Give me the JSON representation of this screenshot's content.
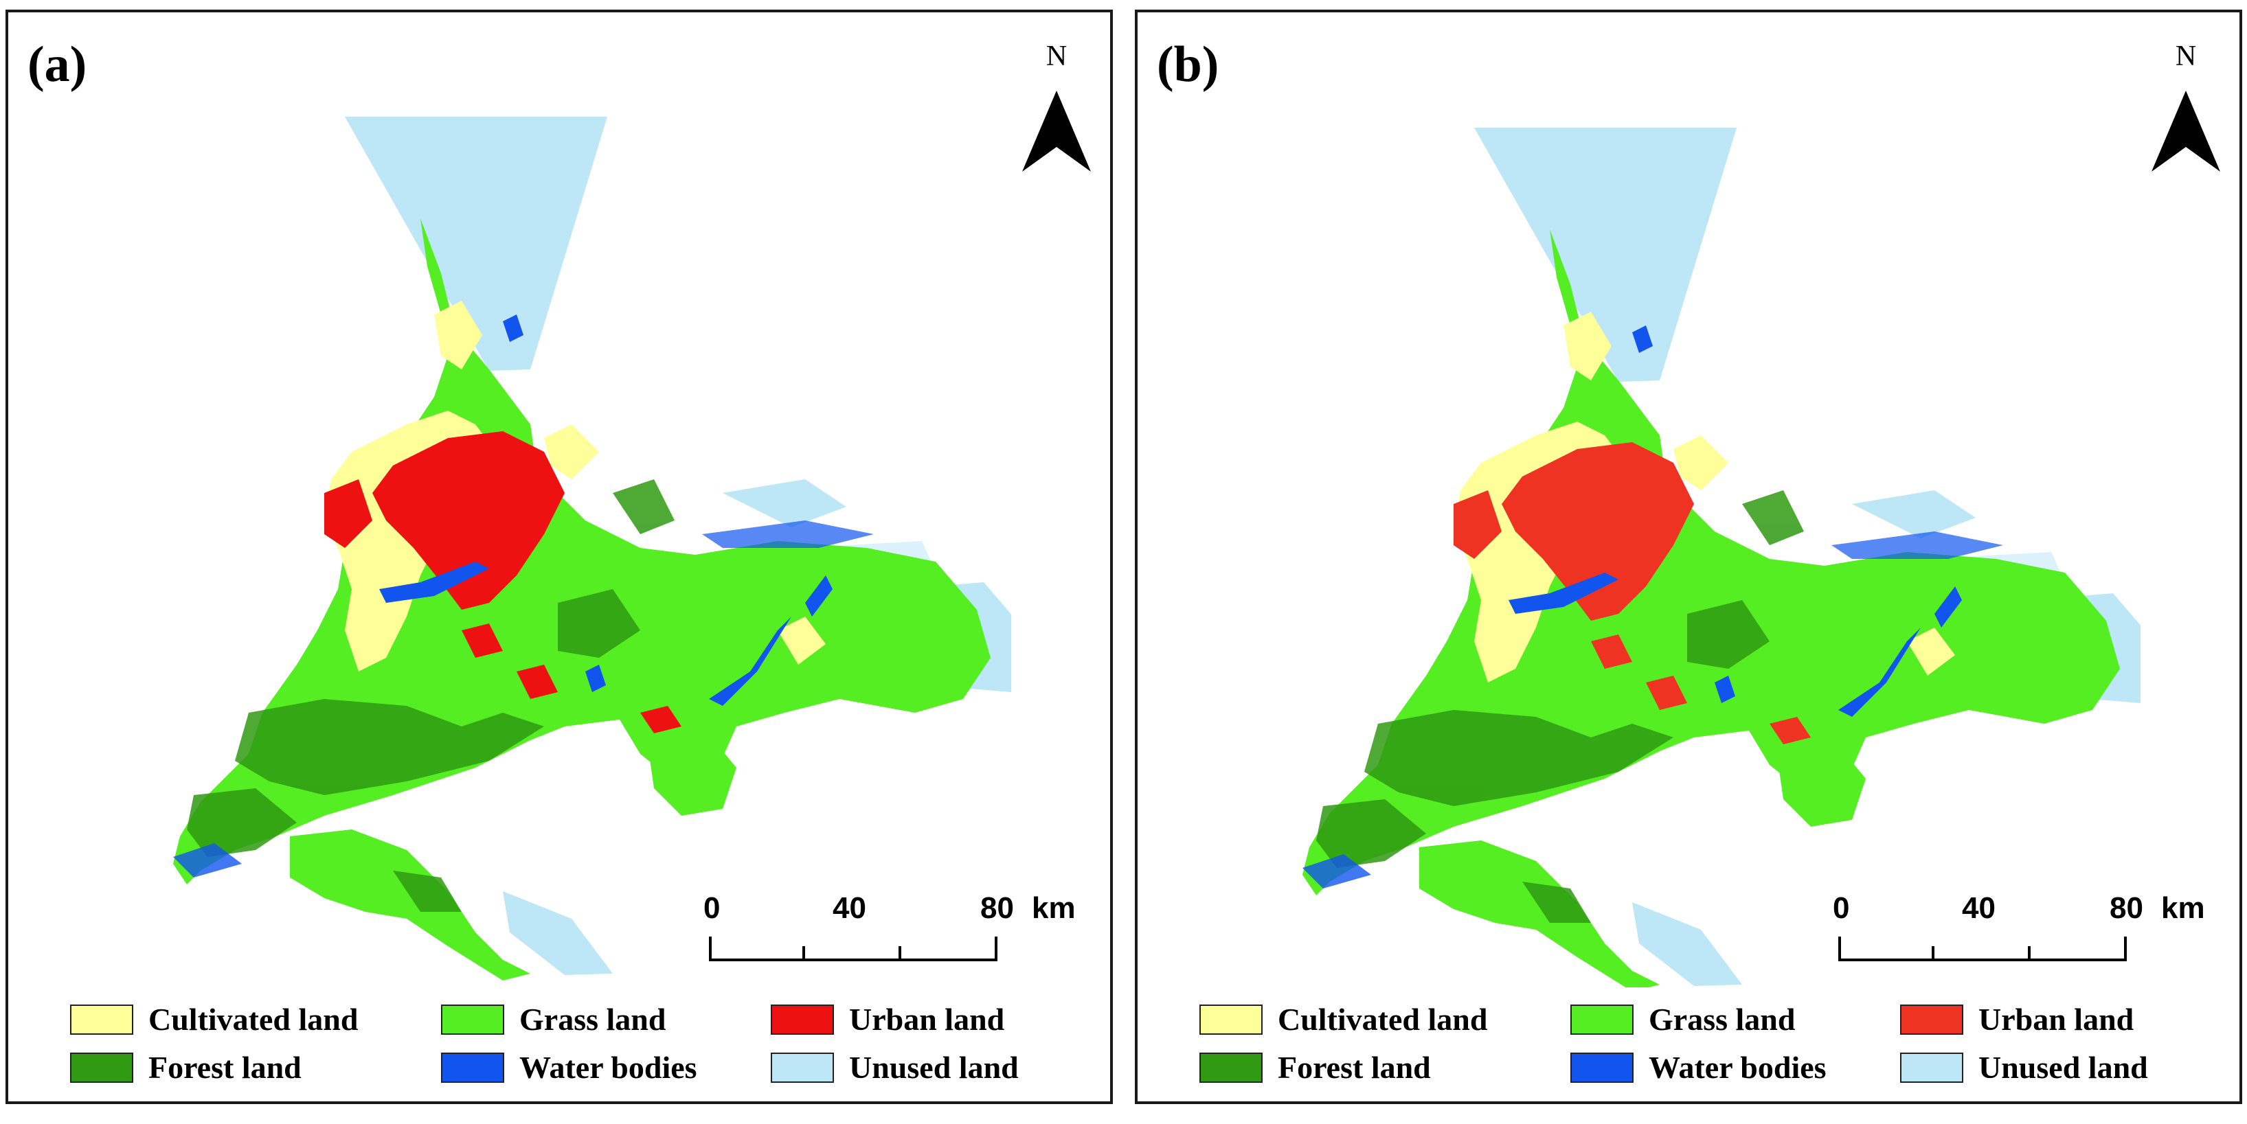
{
  "panels": [
    {
      "label": "(a)",
      "north": "N",
      "scale": {
        "ticks": [
          "0",
          "40",
          "80"
        ],
        "unit": "km"
      },
      "colors": {
        "cultivated": "#ffff99",
        "grass": "#55ee22",
        "urban": "#ee1111",
        "forest": "#2f9a12",
        "water": "#1155ee",
        "unused": "#bde6f7"
      }
    },
    {
      "label": "(b)",
      "north": "N",
      "scale": {
        "ticks": [
          "0",
          "40",
          "80"
        ],
        "unit": "km"
      },
      "colors": {
        "cultivated": "#ffff99",
        "grass": "#55ee22",
        "urban": "#ee3322",
        "forest": "#2f9a12",
        "water": "#1155ee",
        "unused": "#bde6f7"
      }
    }
  ],
  "legend": [
    {
      "key": "cultivated",
      "label": "Cultivated land"
    },
    {
      "key": "grass",
      "label": "Grass land"
    },
    {
      "key": "urban",
      "label": "Urban land"
    },
    {
      "key": "forest",
      "label": "Forest land"
    },
    {
      "key": "water",
      "label": "Water bodies"
    },
    {
      "key": "unused",
      "label": "Unused land"
    }
  ]
}
